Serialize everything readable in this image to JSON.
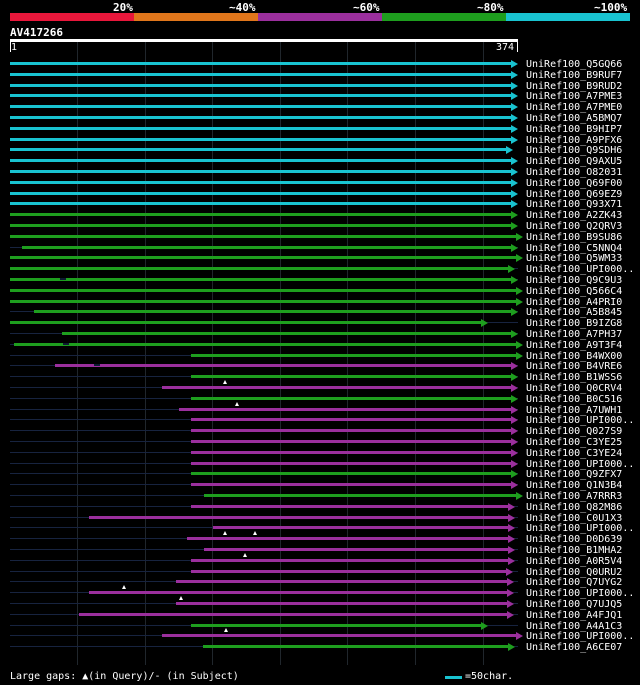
{
  "legend": {
    "labels": [
      "20%",
      "~40%",
      "~60%",
      "~80%",
      "~100%"
    ],
    "colors": [
      "#e8173b",
      "#e0761b",
      "#9b2f9d",
      "#1e9e1e",
      "#19c3d0"
    ]
  },
  "query": {
    "name": "AV417266",
    "start": "1",
    "end": "374"
  },
  "hits": [
    {
      "label": "UniRef100_Q5GQ66",
      "start": 1,
      "end": 374,
      "pct": 100
    },
    {
      "label": "UniRef100_B9RUF7",
      "start": 1,
      "end": 374,
      "pct": 100
    },
    {
      "label": "UniRef100_B9RUD2",
      "start": 1,
      "end": 374,
      "pct": 100
    },
    {
      "label": "UniRef100_A7PME3",
      "start": 1,
      "end": 374,
      "pct": 100
    },
    {
      "label": "UniRef100_A7PME0",
      "start": 1,
      "end": 374,
      "pct": 100
    },
    {
      "label": "UniRef100_A5BMQ7",
      "start": 1,
      "end": 374,
      "pct": 100
    },
    {
      "label": "UniRef100_B9HIP7",
      "start": 1,
      "end": 374,
      "pct": 100
    },
    {
      "label": "UniRef100_A9PFX6",
      "start": 1,
      "end": 374,
      "pct": 100
    },
    {
      "label": "UniRef100_Q9SDH6",
      "start": 1,
      "end": 370,
      "pct": 100
    },
    {
      "label": "UniRef100_Q9AXU5",
      "start": 1,
      "end": 374,
      "pct": 100
    },
    {
      "label": "UniRef100_O82031",
      "start": 1,
      "end": 374,
      "pct": 100
    },
    {
      "label": "UniRef100_Q69F00",
      "start": 1,
      "end": 374,
      "pct": 100
    },
    {
      "label": "UniRef100_Q69EZ9",
      "start": 1,
      "end": 374,
      "pct": 100
    },
    {
      "label": "UniRef100_Q93X71",
      "start": 1,
      "end": 374,
      "pct": 100
    },
    {
      "label": "UniRef100_A2ZK43",
      "start": 1,
      "end": 374,
      "pct": 80
    },
    {
      "label": "UniRef100_Q2QRV3",
      "start": 1,
      "end": 374,
      "pct": 80
    },
    {
      "label": "UniRef100_B9SU86",
      "start": 1,
      "end": 378,
      "pct": 80,
      "lead": true
    },
    {
      "label": "UniRef100_C5NNQ4",
      "start": 10,
      "end": 374,
      "pct": 80,
      "lead": true
    },
    {
      "label": "UniRef100_Q5WM33",
      "start": 1,
      "end": 378,
      "pct": 80,
      "lead": true
    },
    {
      "label": "UniRef100_UPI000..",
      "start": 1,
      "end": 372,
      "pct": 80,
      "lead": true
    },
    {
      "label": "UniRef100_Q9C9U3",
      "start": 1,
      "end": 374,
      "pct": 80,
      "lead": true,
      "gaps": [
        38
      ]
    },
    {
      "label": "UniRef100_Q566C4",
      "start": 1,
      "end": 378,
      "pct": 80,
      "lead": true
    },
    {
      "label": "UniRef100_A4PRI0",
      "start": 1,
      "end": 378,
      "pct": 80,
      "lead": true
    },
    {
      "label": "UniRef100_A5B845",
      "start": 19,
      "end": 374,
      "pct": 80,
      "lead": true
    },
    {
      "label": "UniRef100_B9IZG8",
      "start": 1,
      "end": 352,
      "pct": 80,
      "lead": true
    },
    {
      "label": "UniRef100_A7PH37",
      "start": 39,
      "end": 374,
      "pct": 80,
      "lead": true
    },
    {
      "label": "UniRef100_A9T3F4",
      "start": 4,
      "end": 378,
      "pct": 80,
      "lead": true,
      "gaps": [
        40
      ]
    },
    {
      "label": "UniRef100_B4WX00",
      "start": 134,
      "end": 378,
      "pct": 80,
      "lead": true
    },
    {
      "label": "UniRef100_B4VRE6",
      "start": 34,
      "end": 374,
      "pct": 60,
      "lead": true,
      "gaps": [
        63
      ]
    },
    {
      "label": "UniRef100_B1WSS6",
      "start": 134,
      "end": 374,
      "pct": 80,
      "lead": true
    },
    {
      "label": "UniRef100_Q0CRV4",
      "start": 113,
      "end": 374,
      "pct": 60,
      "lead": true,
      "markers": [
        159
      ]
    },
    {
      "label": "UniRef100_B0C516",
      "start": 134,
      "end": 374,
      "pct": 80,
      "lead": true
    },
    {
      "label": "UniRef100_A7UWH1",
      "start": 125,
      "end": 374,
      "pct": 60,
      "lead": true,
      "markers": [
        168
      ]
    },
    {
      "label": "UniRef100_UPI000..",
      "start": 134,
      "end": 374,
      "pct": 60,
      "lead": true
    },
    {
      "label": "UniRef100_Q027S9",
      "start": 134,
      "end": 374,
      "pct": 60,
      "lead": true
    },
    {
      "label": "UniRef100_C3YE25",
      "start": 134,
      "end": 374,
      "pct": 60,
      "lead": true
    },
    {
      "label": "UniRef100_C3YE24",
      "start": 134,
      "end": 374,
      "pct": 60,
      "lead": true
    },
    {
      "label": "UniRef100_UPI000..",
      "start": 134,
      "end": 374,
      "pct": 60,
      "lead": true
    },
    {
      "label": "UniRef100_Q9ZFX7",
      "start": 134,
      "end": 374,
      "pct": 80,
      "lead": true
    },
    {
      "label": "UniRef100_Q1N3B4",
      "start": 134,
      "end": 374,
      "pct": 60,
      "lead": true
    },
    {
      "label": "UniRef100_A7RRR3",
      "start": 144,
      "end": 378,
      "pct": 80,
      "lead": true
    },
    {
      "label": "UniRef100_Q82M86",
      "start": 134,
      "end": 372,
      "pct": 60,
      "lead": true
    },
    {
      "label": "UniRef100_C0U1X3",
      "start": 59,
      "end": 372,
      "pct": 60,
      "lead": true
    },
    {
      "label": "UniRef100_UPI000..",
      "start": 150,
      "end": 372,
      "pct": 60,
      "lead": true
    },
    {
      "label": "UniRef100_D0D639",
      "start": 131,
      "end": 372,
      "pct": 60,
      "lead": true,
      "markers": [
        159,
        181
      ]
    },
    {
      "label": "UniRef100_B1MHA2",
      "start": 144,
      "end": 372,
      "pct": 60,
      "lead": true
    },
    {
      "label": "UniRef100_A0R5V4",
      "start": 134,
      "end": 372,
      "pct": 60,
      "lead": true,
      "markers": [
        174
      ]
    },
    {
      "label": "UniRef100_Q0URU2",
      "start": 134,
      "end": 370,
      "pct": 60,
      "lead": true
    },
    {
      "label": "UniRef100_Q7UYG2",
      "start": 123,
      "end": 371,
      "pct": 60,
      "lead": true
    },
    {
      "label": "UniRef100_UPI000..",
      "start": 59,
      "end": 371,
      "pct": 60,
      "lead": true,
      "markers": [
        85
      ]
    },
    {
      "label": "UniRef100_Q7UJQ5",
      "start": 123,
      "end": 371,
      "pct": 60,
      "lead": true,
      "markers": [
        127
      ]
    },
    {
      "label": "UniRef100_A4FJQ1",
      "start": 52,
      "end": 371,
      "pct": 60,
      "lead": true
    },
    {
      "label": "UniRef100_A4A1C3",
      "start": 134,
      "end": 352,
      "pct": 80,
      "lead": true
    },
    {
      "label": "UniRef100_UPI000..",
      "start": 113,
      "end": 378,
      "pct": 60,
      "lead": true,
      "markers": [
        160
      ]
    },
    {
      "label": "UniRef100_A6CE07",
      "start": 143,
      "end": 372,
      "pct": 80,
      "lead": true
    }
  ],
  "footer": {
    "note": "Large gaps: ▲(in Query)/- (in Subject)",
    "scale": "=50char."
  }
}
